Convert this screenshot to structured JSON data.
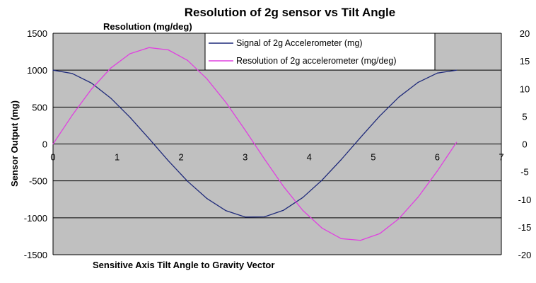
{
  "chart_data": {
    "type": "line",
    "title": "Resolution of 2g sensor vs Tilt Angle",
    "xlabel": "Sensitive Axis Tilt Angle to Gravity Vector",
    "ylabel": "Sensor Output (mg)",
    "y2label": "Resolution  (mg/deg)",
    "xlim": [
      0,
      7
    ],
    "ylim": [
      -1500,
      1500
    ],
    "y2lim": [
      -20,
      20
    ],
    "x_ticks": [
      "0",
      "1",
      "2",
      "3",
      "4",
      "5",
      "6",
      "7"
    ],
    "y_ticks": [
      "1500",
      "1000",
      "500",
      "0",
      "-500",
      "-1000",
      "-1500"
    ],
    "y2_ticks": [
      "20",
      "15",
      "10",
      "5",
      "0",
      "-5",
      "-10",
      "-15",
      "-20"
    ],
    "grid": "horizontal",
    "legend_position": "top-right",
    "x": [
      0,
      0.3,
      0.6,
      0.9,
      1.2,
      1.5,
      1.8,
      2.1,
      2.4,
      2.7,
      3.0,
      3.3,
      3.6,
      3.9,
      4.2,
      4.5,
      4.8,
      5.1,
      5.4,
      5.7,
      6.0,
      6.3
    ],
    "series": [
      {
        "name": "Signal of 2g Accelerometer (mg)",
        "axis": "left",
        "color": "#1f2a7a",
        "values": [
          1000,
          955,
          825,
          622,
          362,
          71,
          -227,
          -505,
          -737,
          -904,
          -990,
          -987,
          -897,
          -726,
          -490,
          -211,
          87,
          378,
          635,
          835,
          960,
          1000
        ]
      },
      {
        "name": "Resolution of 2g accelerometer (mg/deg)",
        "axis": "right",
        "color": "#e040e0",
        "values": [
          0,
          5.2,
          9.9,
          13.7,
          16.3,
          17.4,
          17.0,
          15.1,
          11.8,
          7.5,
          2.5,
          -2.7,
          -7.7,
          -12.0,
          -15.2,
          -17.1,
          -17.4,
          -16.2,
          -13.5,
          -9.6,
          -4.9,
          0.3
        ]
      }
    ]
  }
}
